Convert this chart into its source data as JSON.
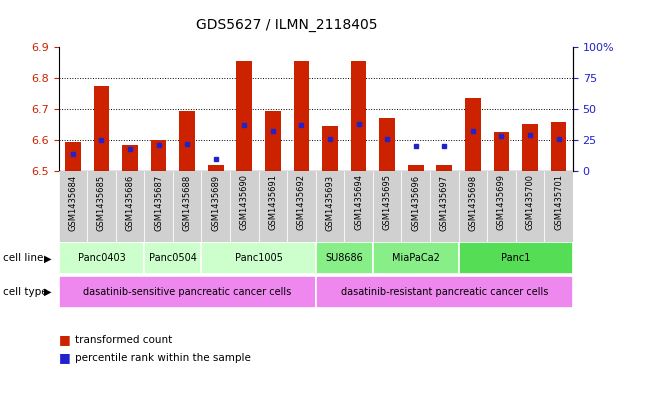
{
  "title": "GDS5627 / ILMN_2118405",
  "samples": [
    "GSM1435684",
    "GSM1435685",
    "GSM1435686",
    "GSM1435687",
    "GSM1435688",
    "GSM1435689",
    "GSM1435690",
    "GSM1435691",
    "GSM1435692",
    "GSM1435693",
    "GSM1435694",
    "GSM1435695",
    "GSM1435696",
    "GSM1435697",
    "GSM1435698",
    "GSM1435699",
    "GSM1435700",
    "GSM1435701"
  ],
  "bar_heights": [
    6.594,
    6.775,
    6.584,
    6.6,
    6.695,
    6.518,
    6.855,
    6.693,
    6.854,
    6.645,
    6.856,
    6.672,
    6.518,
    6.518,
    6.735,
    6.626,
    6.651,
    6.658
  ],
  "percentile_values": [
    14,
    25,
    18,
    21,
    22,
    10,
    37,
    32,
    37,
    26,
    38,
    26,
    20,
    20,
    32,
    28,
    29,
    26
  ],
  "ylim_left": [
    6.5,
    6.9
  ],
  "ylim_right": [
    0,
    100
  ],
  "right_ticks": [
    0,
    25,
    50,
    75,
    100
  ],
  "right_tick_labels": [
    "0",
    "25",
    "50",
    "75",
    "100%"
  ],
  "bar_color": "#cc2200",
  "dot_color": "#2222cc",
  "bar_bottom": 6.5,
  "bar_width": 0.55,
  "cell_lines": [
    {
      "label": "Panc0403",
      "start": 0,
      "end": 2,
      "color": "#ccffcc"
    },
    {
      "label": "Panc0504",
      "start": 3,
      "end": 4,
      "color": "#ccffcc"
    },
    {
      "label": "Panc1005",
      "start": 5,
      "end": 8,
      "color": "#ccffcc"
    },
    {
      "label": "SU8686",
      "start": 9,
      "end": 10,
      "color": "#88ee88"
    },
    {
      "label": "MiaPaCa2",
      "start": 11,
      "end": 13,
      "color": "#88ee88"
    },
    {
      "label": "Panc1",
      "start": 14,
      "end": 17,
      "color": "#55dd55"
    }
  ],
  "cell_types": [
    {
      "label": "dasatinib-sensitive pancreatic cancer cells",
      "start": 0,
      "end": 8,
      "color": "#ee88ee"
    },
    {
      "label": "dasatinib-resistant pancreatic cancer cells",
      "start": 9,
      "end": 17,
      "color": "#ee88ee"
    }
  ],
  "cell_line_row_label": "cell line",
  "cell_type_row_label": "cell type",
  "legend_items": [
    {
      "color": "#cc2200",
      "label": "transformed count"
    },
    {
      "color": "#2222cc",
      "label": "percentile rank within the sample"
    }
  ],
  "sample_label_bg": "#d0d0d0",
  "grid_color": "black",
  "grid_linewidth": 0.7,
  "left_tick_labels": [
    "6.5",
    "6.6",
    "6.7",
    "6.8",
    "6.9"
  ]
}
